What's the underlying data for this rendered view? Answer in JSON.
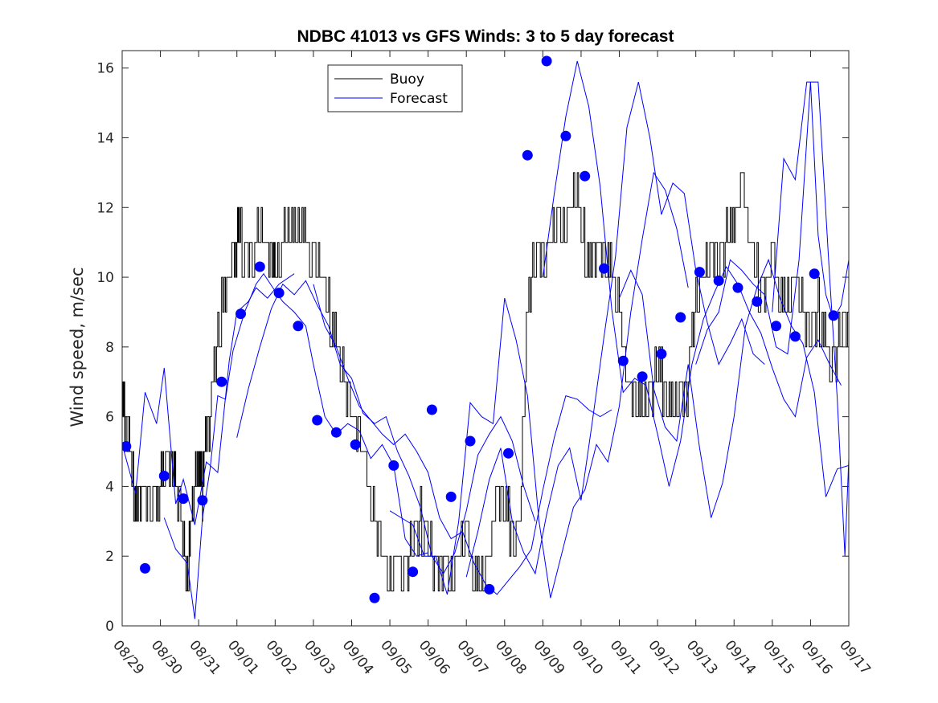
{
  "chart_data": {
    "type": "line",
    "title": "NDBC 41013 vs GFS Winds: 3 to 5 day forecast",
    "xlabel": "",
    "ylabel": "Wind speed, m/sec",
    "x_tick_labels": [
      "08/29",
      "08/30",
      "08/31",
      "09/01",
      "09/02",
      "09/03",
      "09/04",
      "09/05",
      "09/06",
      "09/07",
      "09/08",
      "09/09",
      "09/10",
      "09/11",
      "09/12",
      "09/13",
      "09/14",
      "09/15",
      "09/16",
      "09/17"
    ],
    "xlim_days": [
      0,
      19
    ],
    "ylim": [
      0,
      16.5
    ],
    "y_ticks": [
      0,
      2,
      4,
      6,
      8,
      10,
      12,
      14,
      16
    ],
    "legend": {
      "position": "top-center",
      "entries": [
        {
          "name": "Buoy",
          "color": "#000000"
        },
        {
          "name": "Forecast",
          "color": "#0000ff"
        }
      ]
    },
    "buoy": {
      "name": "Buoy",
      "color": "#000000",
      "t": [
        0.0,
        0.1,
        0.25,
        0.35,
        0.5,
        0.7,
        0.9,
        1.0,
        1.1,
        1.3,
        1.4,
        1.5,
        1.6,
        1.7,
        1.8,
        1.9,
        2.0,
        2.05,
        2.1,
        2.15,
        2.3,
        2.5,
        2.7,
        2.9,
        3.0,
        3.1,
        3.3,
        3.5,
        3.7,
        3.9,
        4.0,
        4.2,
        4.4,
        4.6,
        4.8,
        5.0,
        5.2,
        5.4,
        5.6,
        5.8,
        6.0,
        6.2,
        6.4,
        6.6,
        6.8,
        7.0,
        7.2,
        7.4,
        7.6,
        7.8,
        8.0,
        8.2,
        8.4,
        8.6,
        8.8,
        9.0,
        9.2,
        9.4,
        9.6,
        9.8,
        10.0,
        10.2,
        10.4,
        10.6,
        10.8,
        11.0,
        11.2,
        11.4,
        11.6,
        11.8,
        12.0,
        12.2,
        12.4,
        12.6,
        12.8,
        13.0,
        13.2,
        13.4,
        13.6,
        13.8,
        14.0,
        14.2,
        14.4,
        14.6,
        14.8,
        15.0,
        15.2,
        15.4,
        15.6,
        15.8,
        16.0,
        16.2,
        16.4,
        16.6,
        16.8,
        17.0,
        17.2,
        17.4,
        17.6,
        17.8,
        18.0,
        18.2,
        18.4,
        18.6,
        18.8,
        19.0
      ],
      "v": [
        6.5,
        5.5,
        4.5,
        3.2,
        4.0,
        3.5,
        3.5,
        4.0,
        4.5,
        4.5,
        4.0,
        3.5,
        2.5,
        1.0,
        3.0,
        4.0,
        4.0,
        4.5,
        3.5,
        5.0,
        6.0,
        8.5,
        9.5,
        10.5,
        11.0,
        11.0,
        10.5,
        11.0,
        11.0,
        10.5,
        10.0,
        11.0,
        11.0,
        11.5,
        11.0,
        10.5,
        10.0,
        9.0,
        8.0,
        7.0,
        6.0,
        5.5,
        4.0,
        3.0,
        2.0,
        1.0,
        2.0,
        1.5,
        2.5,
        3.0,
        2.5,
        1.5,
        2.0,
        1.0,
        2.0,
        2.5,
        1.5,
        1.0,
        2.0,
        4.0,
        3.5,
        2.5,
        3.0,
        9.0,
        10.5,
        10.5,
        11.0,
        11.5,
        11.0,
        12.5,
        11.5,
        10.0,
        11.0,
        10.5,
        10.0,
        9.0,
        7.0,
        6.5,
        6.0,
        6.5,
        7.5,
        6.5,
        6.0,
        6.5,
        7.0,
        9.0,
        10.0,
        11.0,
        10.5,
        11.0,
        11.5,
        12.5,
        11.0,
        10.0,
        9.5,
        10.5,
        9.0,
        9.5,
        10.0,
        9.0,
        8.5,
        9.0,
        8.0,
        7.5,
        8.5,
        9.0,
        9.5,
        8.5,
        7.0,
        8.0
      ]
    },
    "forecast_runs": [
      {
        "name": "Forecast",
        "t": [
          0.0,
          0.35,
          0.6,
          0.9,
          1.1,
          1.4,
          1.6,
          1.9,
          2.2,
          2.5,
          2.8,
          3.0,
          3.3,
          3.5,
          3.8,
          4.1,
          4.5
        ],
        "v": [
          5.2,
          3.8,
          6.7,
          5.8,
          7.4,
          3.5,
          4.2,
          2.9,
          4.7,
          4.4,
          7.6,
          9.0,
          9.3,
          9.7,
          9.4,
          9.8,
          10.1
        ]
      },
      {
        "name": "Forecast",
        "t": [
          1.1,
          1.4,
          1.7,
          1.9,
          2.1,
          2.3,
          2.5,
          2.7,
          2.9,
          3.2,
          3.5,
          3.7,
          4.0,
          4.2,
          4.5,
          4.8,
          5.0,
          5.3,
          5.6,
          5.9,
          6.2,
          6.5,
          6.8,
          7.1,
          7.4,
          7.7,
          8.0
        ],
        "v": [
          3.1,
          2.2,
          1.8,
          0.2,
          3.1,
          4.5,
          6.6,
          6.5,
          7.9,
          9.0,
          9.8,
          10.1,
          9.6,
          9.3,
          9.0,
          8.6,
          7.5,
          6.0,
          5.5,
          5.8,
          5.6,
          4.8,
          5.2,
          4.6,
          2.5,
          2.0,
          2.1
        ]
      },
      {
        "name": "Forecast",
        "t": [
          3.0,
          3.3,
          3.6,
          3.9,
          4.2,
          4.5,
          4.8,
          5.1,
          5.4,
          5.7,
          6.0,
          6.3,
          6.6,
          6.9,
          7.2,
          7.5,
          7.8,
          8.1,
          8.4,
          8.7,
          9.0,
          9.3,
          9.6,
          9.9,
          10.2,
          10.5,
          10.8
        ],
        "v": [
          5.4,
          6.8,
          8.0,
          9.1,
          9.8,
          9.5,
          9.9,
          9.2,
          8.6,
          7.5,
          7.1,
          6.1,
          5.8,
          6.0,
          5.0,
          4.3,
          3.4,
          2.0,
          1.5,
          2.1,
          3.3,
          4.9,
          5.5,
          6.0,
          5.3,
          4.0,
          3.0
        ]
      },
      {
        "name": "Forecast",
        "t": [
          5.0,
          5.3,
          5.6,
          5.9,
          6.2,
          6.5,
          6.8,
          7.1,
          7.4,
          7.7,
          8.0,
          8.3,
          8.6,
          8.9,
          9.2,
          9.5,
          9.8,
          10.1,
          10.4,
          10.7,
          11.0,
          11.3,
          11.6,
          11.9,
          12.2,
          12.5,
          12.8
        ],
        "v": [
          9.8,
          8.6,
          8.0,
          7.1,
          6.3,
          5.9,
          5.5,
          5.2,
          5.5,
          5.0,
          4.4,
          3.1,
          2.5,
          2.7,
          1.8,
          1.2,
          0.9,
          1.3,
          1.7,
          2.2,
          3.9,
          5.4,
          6.6,
          6.5,
          6.2,
          6.0,
          6.2
        ]
      },
      {
        "name": "Forecast",
        "t": [
          7.0,
          7.3,
          7.6,
          7.9,
          8.2,
          8.5,
          8.8,
          9.1,
          9.4,
          9.7,
          10.0,
          10.3,
          10.6,
          10.9,
          11.2,
          11.5,
          11.8,
          12.1,
          12.4,
          12.7,
          13.0,
          13.3,
          13.6,
          13.9,
          14.2,
          14.5,
          14.8
        ],
        "v": [
          3.3,
          3.1,
          2.9,
          2.0,
          2.0,
          0.9,
          3.0,
          6.4,
          6.0,
          5.8,
          9.4,
          8.2,
          6.6,
          3.0,
          0.8,
          2.1,
          3.4,
          3.9,
          5.2,
          4.7,
          6.3,
          9.0,
          11.1,
          13.0,
          12.5,
          11.4,
          9.7
        ]
      },
      {
        "name": "Forecast",
        "t": [
          9.0,
          9.3,
          9.6,
          9.9,
          10.2,
          10.5,
          10.8,
          11.1,
          11.4,
          11.7,
          12.0,
          12.3,
          12.6,
          12.9,
          13.2,
          13.5,
          13.8,
          14.1,
          14.4,
          14.7,
          15.0,
          15.3,
          15.6,
          15.9,
          16.2,
          16.5,
          16.8
        ],
        "v": [
          1.4,
          2.7,
          4.2,
          5.1,
          3.0,
          2.1,
          1.5,
          3.2,
          4.6,
          5.1,
          3.6,
          5.9,
          8.3,
          10.6,
          14.3,
          15.6,
          14.0,
          11.8,
          12.7,
          12.4,
          10.2,
          8.7,
          7.5,
          8.1,
          8.8,
          7.8,
          7.5
        ]
      },
      {
        "name": "Forecast",
        "t": [
          11.0,
          11.3,
          11.6,
          11.9,
          12.2,
          12.5,
          12.8,
          13.1,
          13.4,
          13.7,
          14.0,
          14.3,
          14.6,
          14.9,
          15.2,
          15.5,
          15.8,
          16.1,
          16.4,
          16.7,
          17.0,
          17.3,
          17.6,
          17.9,
          18.2,
          18.5,
          18.8
        ],
        "v": [
          10.0,
          12.4,
          14.6,
          16.2,
          14.9,
          12.6,
          9.1,
          6.7,
          7.1,
          6.9,
          5.5,
          4.0,
          5.3,
          7.5,
          8.8,
          9.6,
          10.3,
          9.8,
          9.0,
          8.4,
          7.4,
          6.5,
          6.0,
          7.7,
          8.2,
          7.5,
          6.9
        ]
      },
      {
        "name": "Forecast",
        "t": [
          13.0,
          13.3,
          13.6,
          13.9,
          14.2,
          14.5,
          14.8,
          15.1,
          15.4,
          15.7,
          16.0,
          16.3,
          16.6,
          16.9,
          17.2,
          17.5,
          17.8,
          18.1,
          18.4,
          18.7,
          19.0
        ],
        "v": [
          9.4,
          10.2,
          9.5,
          6.8,
          5.7,
          5.3,
          7.5,
          5.1,
          3.1,
          4.1,
          6.0,
          8.6,
          9.7,
          10.5,
          9.4,
          8.6,
          8.1,
          6.7,
          3.7,
          4.5,
          4.6
        ]
      },
      {
        "name": "Forecast",
        "t": [
          15.0,
          15.3,
          15.6,
          15.9,
          16.2,
          16.5,
          16.8,
          17.1,
          17.4,
          17.7,
          18.0,
          18.2,
          18.4,
          18.6,
          18.8,
          19.0
        ],
        "v": [
          7.5,
          8.5,
          9.0,
          10.5,
          10.2,
          9.8,
          9.5,
          8.0,
          7.8,
          10.5,
          15.6,
          11.2,
          9.5,
          8.8,
          9.2,
          10.5
        ]
      },
      {
        "name": "Forecast",
        "t": [
          17.0,
          17.3,
          17.6,
          17.9,
          18.2,
          18.5,
          18.7,
          18.9,
          19.0
        ],
        "v": [
          9.0,
          13.4,
          12.8,
          15.6,
          15.6,
          10.0,
          6.5,
          2.0,
          4.8
        ]
      }
    ],
    "forecast_points": {
      "name": "Forecast",
      "color": "#0000ff",
      "t": [
        0.1,
        0.6,
        1.1,
        1.6,
        2.1,
        2.6,
        3.1,
        3.6,
        4.1,
        4.6,
        5.1,
        5.6,
        6.1,
        6.6,
        7.1,
        7.6,
        8.1,
        8.6,
        9.1,
        9.6,
        10.1,
        10.6,
        11.1,
        11.6,
        12.1,
        12.6,
        13.1,
        13.6,
        14.1,
        14.6,
        15.1,
        15.6,
        16.1,
        16.6,
        17.1,
        17.6,
        18.1,
        18.6
      ],
      "v": [
        5.15,
        1.65,
        4.3,
        3.65,
        3.6,
        7.0,
        8.95,
        10.3,
        9.55,
        8.6,
        5.9,
        5.55,
        5.2,
        0.8,
        4.6,
        1.55,
        6.2,
        3.7,
        5.3,
        1.05,
        4.95,
        13.5,
        16.2,
        14.05,
        12.9,
        10.25,
        7.6,
        7.15,
        7.8,
        8.85,
        10.15,
        9.9,
        9.7,
        9.3,
        8.6,
        8.3,
        10.1,
        8.9
      ]
    }
  }
}
